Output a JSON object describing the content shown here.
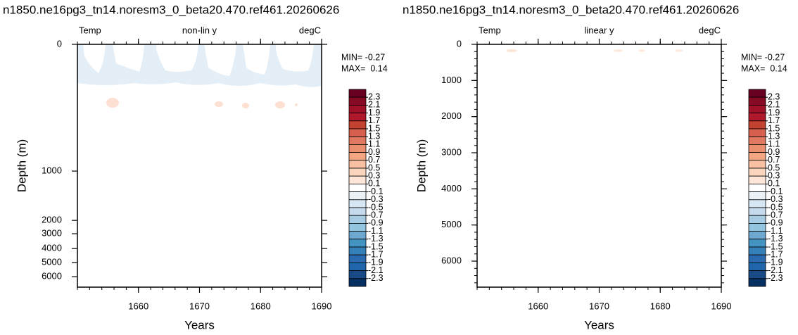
{
  "chart_data": [
    {
      "type": "contour",
      "title": "n1850.ne16pg3_tn14.noresm3_0_beta20.470.ref461.20260626",
      "left_string": "Temp",
      "center_string": "non-lin y",
      "right_string": "degC",
      "xlabel": "Years",
      "ylabel": "Depth (m)",
      "xlim": [
        1650,
        1690
      ],
      "xticks": [
        1660,
        1670,
        1680,
        1690
      ],
      "ylim": [
        0,
        6720
      ],
      "yticks": [
        0,
        1000,
        2000,
        3000,
        4000,
        5000,
        6000
      ],
      "yscale": "nonlinear",
      "reverse_y": true,
      "annotations": [
        "MIN= -0.27",
        "MAX=  0.14"
      ],
      "levels": [
        2.3,
        2.1,
        1.9,
        1.7,
        1.5,
        1.3,
        1.1,
        0.9,
        0.7,
        0.5,
        0.3,
        0.1,
        -0.1,
        -0.3,
        -0.5,
        -0.7,
        -0.9,
        -1.1,
        -1.3,
        -1.5,
        -1.7,
        -1.9,
        -2.1,
        -2.3
      ],
      "colors": [
        "#67001f",
        "#870a24",
        "#a11228",
        "#b2182b",
        "#c2412f",
        "#d6604d",
        "#e0795f",
        "#ea8e70",
        "#f4a582",
        "#f8c0a2",
        "#fbd4bd",
        "#fde6d8",
        "#ffffff",
        "#eaf2f8",
        "#d6e6f2",
        "#c6dbee",
        "#a8cce4",
        "#92c5de",
        "#6fa8d1",
        "#4393c3",
        "#357fb8",
        "#2c6ab0",
        "#2166ac",
        "#174a86",
        "#053061"
      ]
    },
    {
      "type": "contour",
      "title": "n1850.ne16pg3_tn14.noresm3_0_beta20.470.ref461.20260626",
      "left_string": "Temp",
      "center_string": "linear y",
      "right_string": "degC",
      "xlabel": "Years",
      "ylabel": "Depth (m)",
      "xlim": [
        1650,
        1690
      ],
      "xticks": [
        1660,
        1670,
        1680,
        1690
      ],
      "ylim": [
        0,
        6720
      ],
      "yticks": [
        0,
        1000,
        2000,
        3000,
        4000,
        5000,
        6000
      ],
      "yscale": "linear",
      "reverse_y": true,
      "annotations": [
        "MIN= -0.27",
        "MAX=  0.14"
      ],
      "levels": [
        2.3,
        2.1,
        1.9,
        1.7,
        1.5,
        1.3,
        1.1,
        0.9,
        0.7,
        0.5,
        0.3,
        0.1,
        -0.1,
        -0.3,
        -0.5,
        -0.7,
        -0.9,
        -1.1,
        -1.3,
        -1.5,
        -1.7,
        -1.9,
        -2.1,
        -2.3
      ],
      "colors": [
        "#67001f",
        "#870a24",
        "#a11228",
        "#b2182b",
        "#c2412f",
        "#d6604d",
        "#e0795f",
        "#ea8e70",
        "#f4a582",
        "#f8c0a2",
        "#fbd4bd",
        "#fde6d8",
        "#ffffff",
        "#eaf2f8",
        "#d6e6f2",
        "#c6dbee",
        "#a8cce4",
        "#92c5de",
        "#6fa8d1",
        "#4393c3",
        "#357fb8",
        "#2c6ab0",
        "#2166ac",
        "#174a86",
        "#053061"
      ]
    }
  ]
}
